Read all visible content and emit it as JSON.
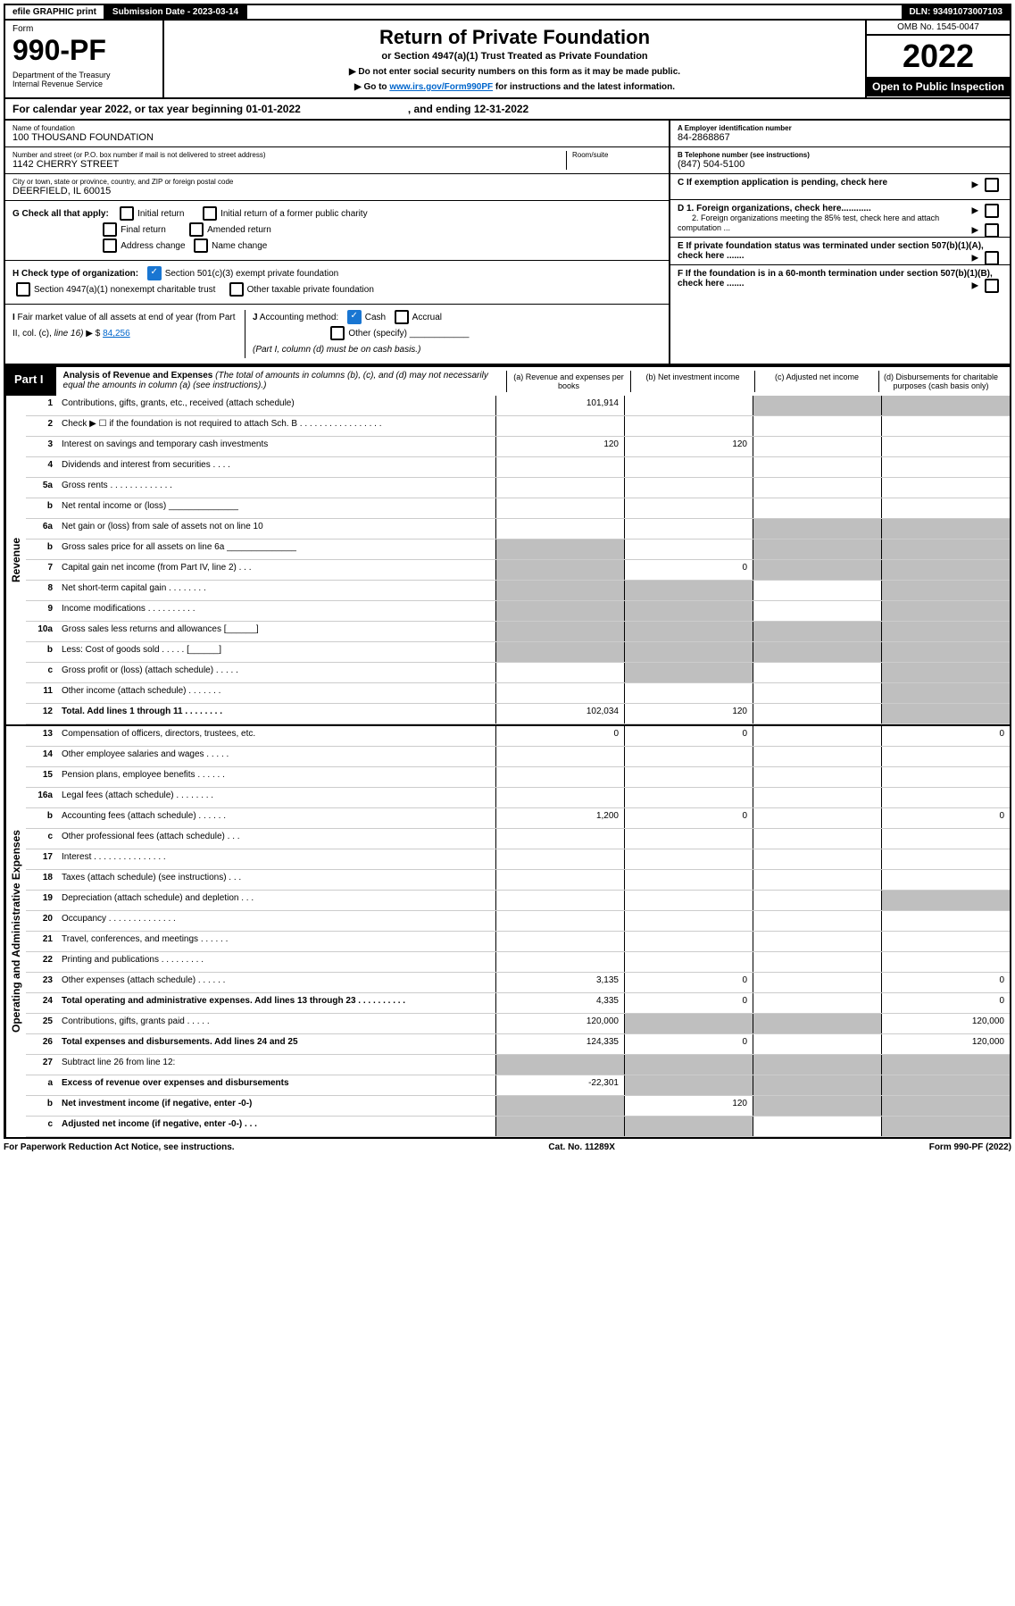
{
  "topbar": {
    "efile": "efile GRAPHIC print",
    "subdate_lbl": "Submission Date - ",
    "subdate": "2023-03-14",
    "dln_lbl": "DLN: ",
    "dln": "93491073007103"
  },
  "header": {
    "form": "Form",
    "num": "990-PF",
    "dept": "Department of the Treasury\nInternal Revenue Service",
    "title": "Return of Private Foundation",
    "sub": "or Section 4947(a)(1) Trust Treated as Private Foundation",
    "note1": "▶ Do not enter social security numbers on this form as it may be made public.",
    "note2": "▶ Go to ",
    "link": "www.irs.gov/Form990PF",
    "note3": " for instructions and the latest information.",
    "omb": "OMB No. 1545-0047",
    "year": "2022",
    "open": "Open to Public Inspection"
  },
  "calyear": {
    "a": "For calendar year 2022, or tax year beginning 01-01-2022",
    "b": ", and ending 12-31-2022"
  },
  "id": {
    "name_lbl": "Name of foundation",
    "name": "100 THOUSAND FOUNDATION",
    "addr_lbl": "Number and street (or P.O. box number if mail is not delivered to street address)",
    "addr": "1142 CHERRY STREET",
    "room_lbl": "Room/suite",
    "city_lbl": "City or town, state or province, country, and ZIP or foreign postal code",
    "city": "DEERFIELD, IL  60015",
    "a_lbl": "A Employer identification number",
    "a": "84-2868867",
    "b_lbl": "B Telephone number (see instructions)",
    "b": "(847) 504-5100",
    "c": "C If exemption application is pending, check here",
    "d1": "D 1. Foreign organizations, check here............",
    "d2": "2. Foreign organizations meeting the 85% test, check here and attach computation ...",
    "e": "E  If private foundation status was terminated under section 507(b)(1)(A), check here .......",
    "f": "F  If the foundation is in a 60-month termination under section 507(b)(1)(B), check here ......."
  },
  "g": {
    "lbl": "G Check all that apply:",
    "o1": "Initial return",
    "o2": "Final return",
    "o3": "Address change",
    "o4": "Initial return of a former public charity",
    "o5": "Amended return",
    "o6": "Name change"
  },
  "h": {
    "lbl": "H Check type of organization:",
    "o1": "Section 501(c)(3) exempt private foundation",
    "o2": "Section 4947(a)(1) nonexempt charitable trust",
    "o3": "Other taxable private foundation"
  },
  "i": {
    "lbl": "I Fair market value of all assets at end of year (from Part II, col. (c), line 16) ▶ $",
    "val": "84,256"
  },
  "j": {
    "lbl": "J Accounting method:",
    "o1": "Cash",
    "o2": "Accrual",
    "o3": "Other (specify)",
    "note": "(Part I, column (d) must be on cash basis.)"
  },
  "part1": {
    "lbl": "Part I",
    "title": "Analysis of Revenue and Expenses",
    "note": "(The total of amounts in columns (b), (c), and (d) may not necessarily equal the amounts in column (a) (see instructions).)",
    "ca": "(a)  Revenue and expenses per books",
    "cb": "(b)  Net investment income",
    "cc": "(c)  Adjusted net income",
    "cd": "(d)  Disbursements for charitable purposes (cash basis only)"
  },
  "rev_lbl": "Revenue",
  "oae_lbl": "Operating and Administrative Expenses",
  "rows": [
    {
      "n": "1",
      "d": "Contributions, gifts, grants, etc., received (attach schedule)",
      "a": "101,914",
      "cg": true,
      "dg": true
    },
    {
      "n": "2",
      "d": "Check ▶ ☐ if the foundation is not required to attach Sch. B    .  .  .  .  .  .  .  .  .  .  .  .  .  .  .  .  ."
    },
    {
      "n": "3",
      "d": "Interest on savings and temporary cash investments",
      "a": "120",
      "b": "120"
    },
    {
      "n": "4",
      "d": "Dividends and interest from securities    .   .   .   ."
    },
    {
      "n": "5a",
      "d": "Gross rents   .   .   .   .   .   .   .   .   .   .   .   .   ."
    },
    {
      "n": "b",
      "d": "Net rental income or (loss)  ______________"
    },
    {
      "n": "6a",
      "d": "Net gain or (loss) from sale of assets not on line 10",
      "cg": true,
      "dg": true
    },
    {
      "n": "b",
      "d": "Gross sales price for all assets on line 6a ______________",
      "ag": true,
      "cg": true,
      "dg": true
    },
    {
      "n": "7",
      "d": "Capital gain net income (from Part IV, line 2)   .   .   .",
      "ag": true,
      "b": "0",
      "cg": true,
      "dg": true
    },
    {
      "n": "8",
      "d": "Net short-term capital gain   .   .   .   .   .   .   .   .",
      "ag": true,
      "bg": true,
      "dg": true
    },
    {
      "n": "9",
      "d": "Income modifications   .   .   .   .   .   .   .   .   .   .",
      "ag": true,
      "bg": true,
      "dg": true
    },
    {
      "n": "10a",
      "d": "Gross sales less returns and allowances  [______]",
      "ag": true,
      "bg": true,
      "cg": true,
      "dg": true
    },
    {
      "n": "b",
      "d": "Less: Cost of goods sold   .   .   .   .   .   [______]",
      "ag": true,
      "bg": true,
      "cg": true,
      "dg": true
    },
    {
      "n": "c",
      "d": "Gross profit or (loss) (attach schedule)   .   .   .   .   .",
      "bg": true,
      "dg": true
    },
    {
      "n": "11",
      "d": "Other income (attach schedule)   .   .   .   .   .   .   .",
      "dg": true
    },
    {
      "n": "12",
      "d": "Total. Add lines 1 through 11   .   .   .   .   .   .   .   .",
      "bold": true,
      "a": "102,034",
      "b": "120",
      "dg": true
    }
  ],
  "oae": [
    {
      "n": "13",
      "d": "Compensation of officers, directors, trustees, etc.",
      "a": "0",
      "b": "0",
      "dv": "0"
    },
    {
      "n": "14",
      "d": "Other employee salaries and wages   .   .   .   .   ."
    },
    {
      "n": "15",
      "d": "Pension plans, employee benefits   .   .   .   .   .   ."
    },
    {
      "n": "16a",
      "d": "Legal fees (attach schedule)   .   .   .   .   .   .   .   ."
    },
    {
      "n": "b",
      "d": "Accounting fees (attach schedule)   .   .   .   .   .   .",
      "a": "1,200",
      "b": "0",
      "dv": "0"
    },
    {
      "n": "c",
      "d": "Other professional fees (attach schedule)   .   .   ."
    },
    {
      "n": "17",
      "d": "Interest   .   .   .   .   .   .   .   .   .   .   .   .   .   .   ."
    },
    {
      "n": "18",
      "d": "Taxes (attach schedule) (see instructions)   .   .   ."
    },
    {
      "n": "19",
      "d": "Depreciation (attach schedule) and depletion   .   .   .",
      "dg": true
    },
    {
      "n": "20",
      "d": "Occupancy   .   .   .   .   .   .   .   .   .   .   .   .   .   ."
    },
    {
      "n": "21",
      "d": "Travel, conferences, and meetings   .   .   .   .   .   ."
    },
    {
      "n": "22",
      "d": "Printing and publications   .   .   .   .   .   .   .   .   ."
    },
    {
      "n": "23",
      "d": "Other expenses (attach schedule)   .   .   .   .   .   .",
      "a": "3,135",
      "b": "0",
      "dv": "0"
    },
    {
      "n": "24",
      "d": "Total operating and administrative expenses. Add lines 13 through 23   .   .   .   .   .   .   .   .   .   .",
      "bold": true,
      "a": "4,335",
      "b": "0",
      "dv": "0"
    },
    {
      "n": "25",
      "d": "Contributions, gifts, grants paid   .   .   .   .   .",
      "a": "120,000",
      "bg": true,
      "cg": true,
      "dv": "120,000"
    },
    {
      "n": "26",
      "d": "Total expenses and disbursements. Add lines 24 and 25",
      "bold": true,
      "a": "124,335",
      "b": "0",
      "dv": "120,000"
    },
    {
      "n": "27",
      "d": "Subtract line 26 from line 12:",
      "ag": true,
      "bg": true,
      "cg": true,
      "dg": true
    },
    {
      "n": "a",
      "d": "Excess of revenue over expenses and disbursements",
      "bold": true,
      "a": "-22,301",
      "bg": true,
      "cg": true,
      "dg": true
    },
    {
      "n": "b",
      "d": "Net investment income (if negative, enter -0-)",
      "bold": true,
      "ag": true,
      "b": "120",
      "cg": true,
      "dg": true
    },
    {
      "n": "c",
      "d": "Adjusted net income (if negative, enter -0-)   .   .   .",
      "bold": true,
      "ag": true,
      "bg": true,
      "dg": true
    }
  ],
  "foot": {
    "a": "For Paperwork Reduction Act Notice, see instructions.",
    "b": "Cat. No. 11289X",
    "c": "Form 990-PF (2022)"
  }
}
